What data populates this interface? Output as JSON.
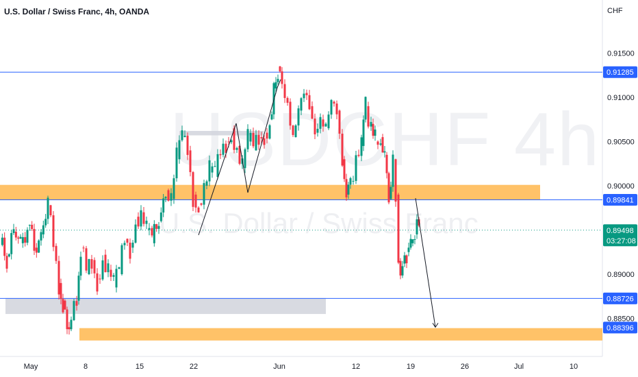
{
  "header": {
    "title": "U.S. Dollar / Swiss Franc, 4h, OANDA",
    "currency": "CHF"
  },
  "watermark": {
    "symbol": "USDCHF 4h",
    "name": "U.S. Dollar / Swiss Franc"
  },
  "chart_data": {
    "type": "candlestick",
    "title": "U.S. Dollar / Swiss Franc, 4h, OANDA",
    "y_axis": {
      "ticks": [
        0.885,
        0.89,
        0.895,
        0.9,
        0.905,
        0.91,
        0.915
      ],
      "tick_labels": [
        "0.88500",
        "0.89000",
        "0.89500",
        "0.90000",
        "0.90500",
        "0.91000",
        "0.91500"
      ],
      "range": [
        0.8814,
        0.9181
      ],
      "unit": "CHF"
    },
    "x_axis": {
      "tick_labels": [
        "May",
        "8",
        "15",
        "22",
        "Jun",
        "12",
        "19",
        "26",
        "Jul",
        "10"
      ]
    },
    "price_labels": [
      {
        "value": "0.91285",
        "color": "#2962ff"
      },
      {
        "value": "0.89841",
        "color": "#2962ff"
      },
      {
        "value": "0.89498",
        "color": "#089981",
        "countdown": "03:27:08"
      },
      {
        "value": "0.88726",
        "color": "#2962ff"
      },
      {
        "value": "0.88396",
        "color": "#2962ff"
      }
    ],
    "horizontal_lines": [
      0.91285,
      0.89841,
      0.88726
    ],
    "zones": [
      {
        "name": "resistance-zone",
        "from": 0.8984,
        "to": 0.9001,
        "color": "#ffb74d"
      },
      {
        "name": "support-zone",
        "from": 0.8825,
        "to": 0.8839,
        "color": "#ffb74d"
      },
      {
        "name": "gray-zone-upper",
        "from": 0.9057,
        "to": 0.9062,
        "color": "#d1d4dc"
      },
      {
        "name": "gray-zone-lower",
        "from": 0.8855,
        "to": 0.8873,
        "color": "#d1d4dc"
      }
    ],
    "current_price": 0.89498,
    "up_color": "#089981",
    "down_color": "#f23645",
    "projection": {
      "from": 0.8986,
      "to": 0.884
    }
  }
}
